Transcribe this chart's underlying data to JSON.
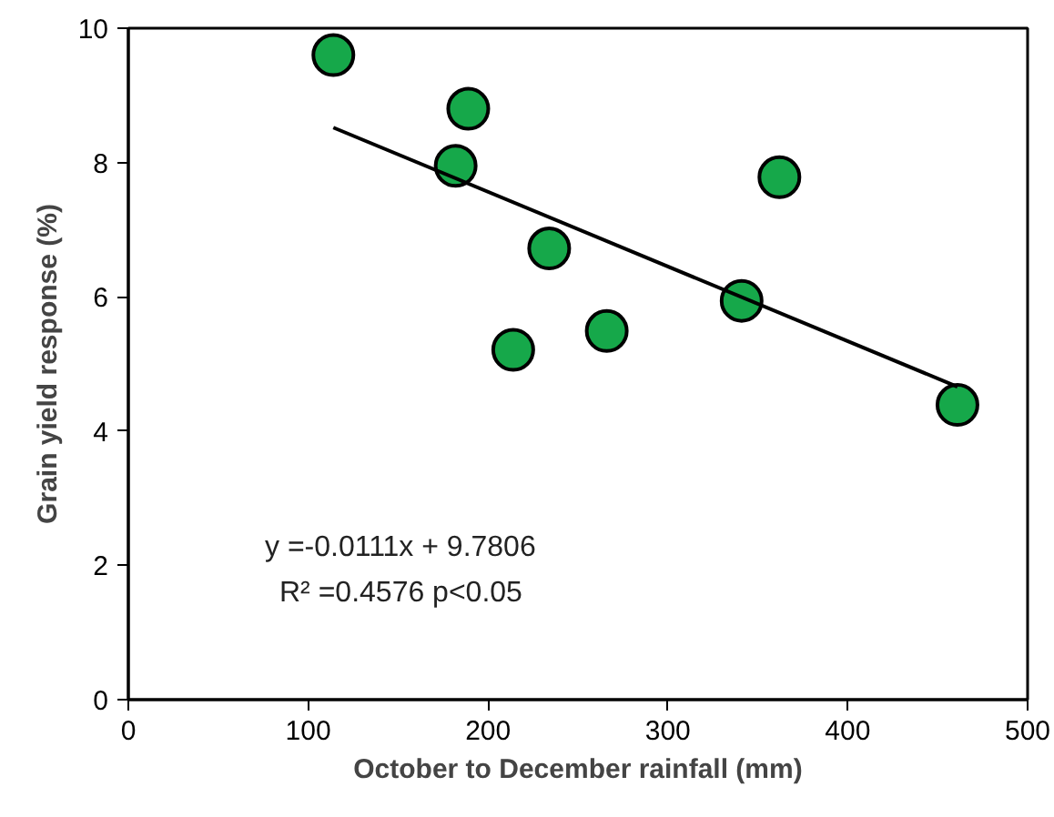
{
  "chart_data": {
    "type": "scatter",
    "xlabel": "October to December rainfall (mm)",
    "ylabel": "Grain yield response (%)",
    "xlim": [
      0,
      500
    ],
    "xticks": [
      0,
      100,
      200,
      300,
      400,
      500
    ],
    "ylim": [
      0,
      10
    ],
    "yticks": [
      0,
      2,
      4,
      6,
      8,
      10
    ],
    "grid": false,
    "series": [
      {
        "marker": "circle",
        "color": "#16a84a",
        "x": [
          114,
          189,
          182,
          234,
          214,
          266,
          341,
          362,
          461
        ],
        "values": [
          9.6,
          8.8,
          7.95,
          6.72,
          5.21,
          5.49,
          5.94,
          7.78,
          4.39
        ]
      },
      {
        "type": "line",
        "marker": "none",
        "color": "#000000",
        "x": [
          114,
          461
        ],
        "values": [
          8.52,
          4.66
        ]
      }
    ],
    "annotations": [
      "y =-0.0111x + 9.7806",
      "R² =0.4576 p<0.05"
    ]
  }
}
